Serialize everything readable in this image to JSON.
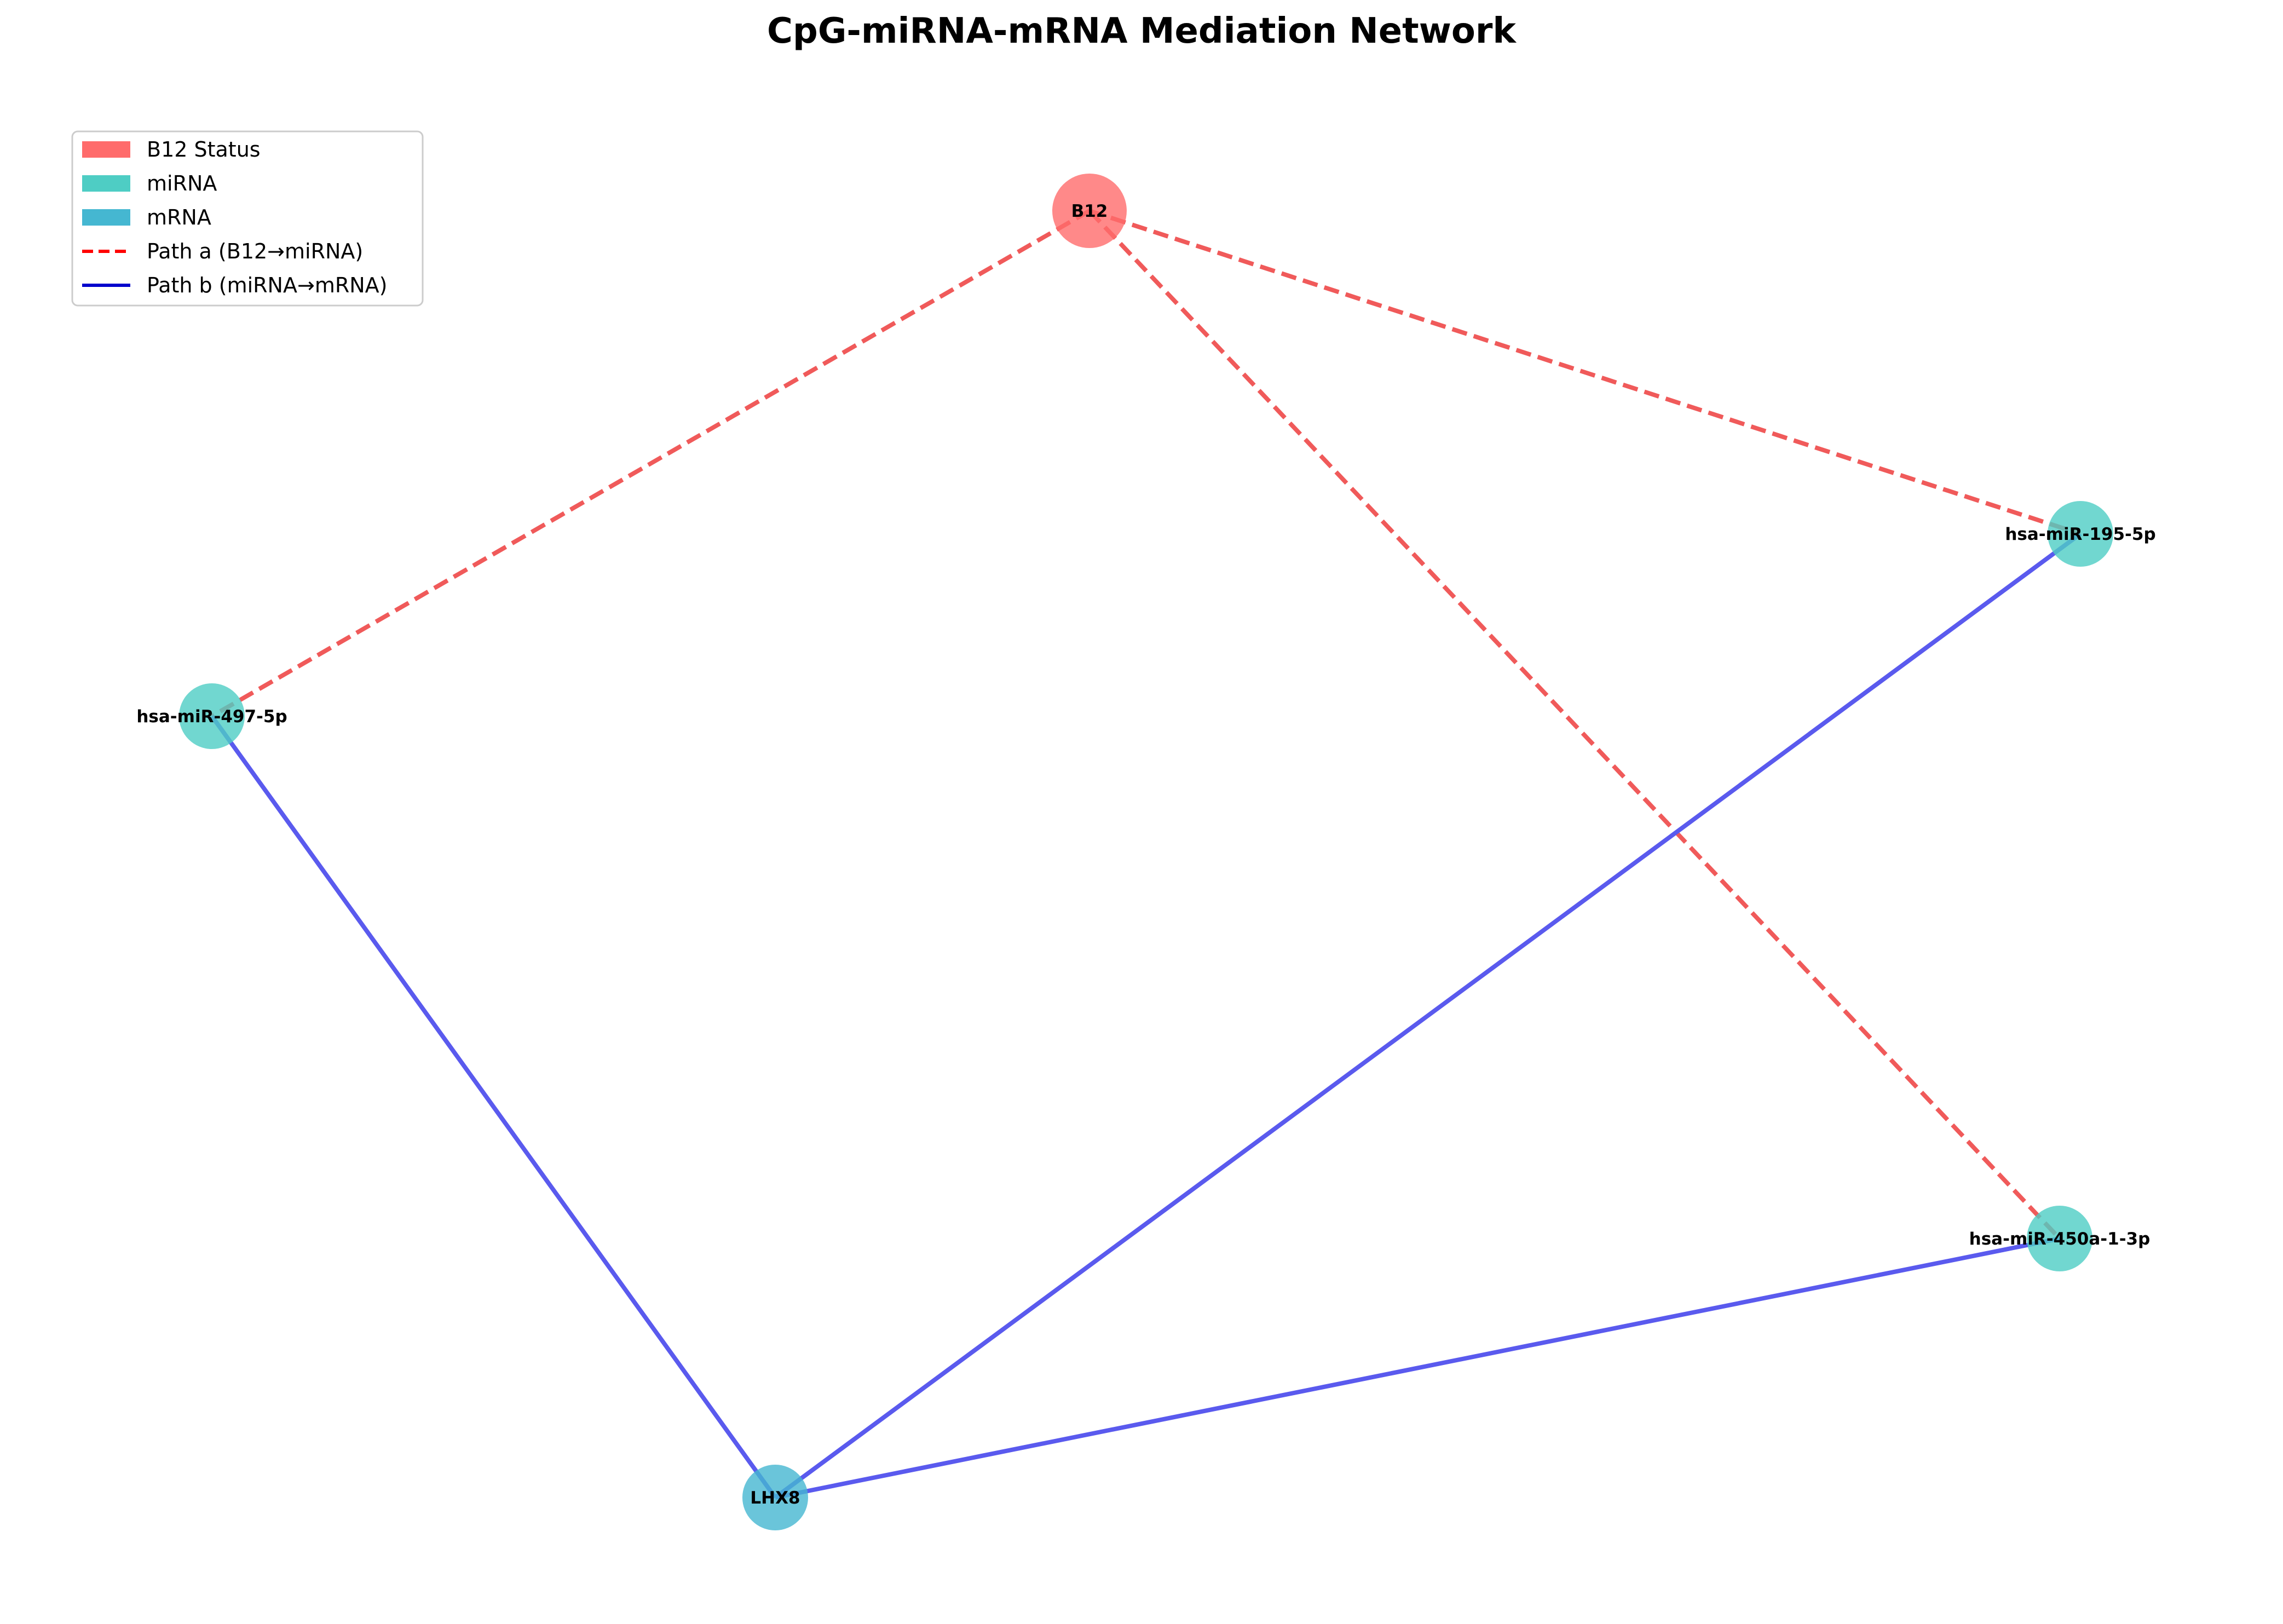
{
  "title": "CpG-miRNA-mRNA Mediation Network",
  "colors": {
    "b12": "#ff6b6b",
    "mirna": "#4ecdc4",
    "mrna": "#45b7d1",
    "path_a": "#f05a5a",
    "path_b": "#5a5aee",
    "legend_path_a": "#ff0000",
    "legend_path_b": "#0000cc"
  },
  "legend": {
    "b12": "B12 Status",
    "mirna": "miRNA",
    "mrna": "mRNA",
    "path_a": "Path a (B12→miRNA)",
    "path_b": "Path b (miRNA→mRNA)"
  },
  "nodes": {
    "b12": {
      "label": "B12",
      "type": "b12"
    },
    "mir195": {
      "label": "hsa-miR-195-5p",
      "type": "mirna"
    },
    "mir497": {
      "label": "hsa-miR-497-5p",
      "type": "mirna"
    },
    "mir450": {
      "label": "hsa-miR-450a-1-3p",
      "type": "mirna"
    },
    "lhx8": {
      "label": "LHX8",
      "type": "mrna"
    }
  },
  "edges": [
    {
      "from": "b12",
      "to": "mir497",
      "path": "a"
    },
    {
      "from": "b12",
      "to": "mir195",
      "path": "a"
    },
    {
      "from": "b12",
      "to": "mir450",
      "path": "a"
    },
    {
      "from": "mir497",
      "to": "lhx8",
      "path": "b"
    },
    {
      "from": "mir195",
      "to": "lhx8",
      "path": "b"
    },
    {
      "from": "mir450",
      "to": "lhx8",
      "path": "b"
    }
  ]
}
